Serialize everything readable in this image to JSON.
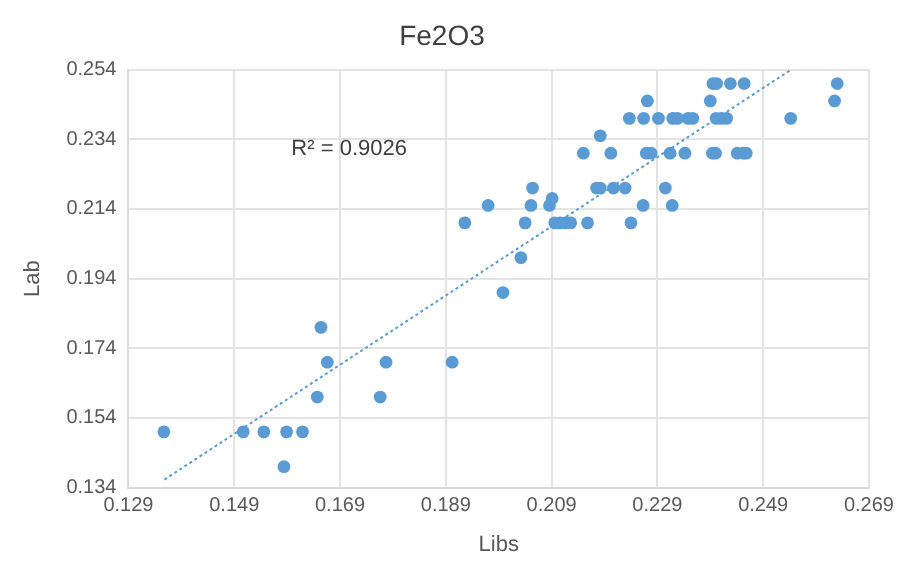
{
  "chart_data": {
    "type": "scatter",
    "title": "Fe2O3",
    "xlabel": "Libs",
    "ylabel": "Lab",
    "annotations": [
      "R² = 0.9026"
    ],
    "series": [
      {
        "type": "scatter",
        "color": "#5b9bd5",
        "marker": "circle",
        "x": [
          0.1357,
          0.1507,
          0.1546,
          0.1589,
          0.1619,
          0.1584,
          0.1647,
          0.1654,
          0.1666,
          0.1766,
          0.1777,
          0.1902,
          0.1926,
          0.197,
          0.1998,
          0.2032,
          0.204,
          0.2051,
          0.2054,
          0.2086,
          0.2091,
          0.2096,
          0.2106,
          0.2116,
          0.2126,
          0.2158,
          0.215,
          0.2175,
          0.2182,
          0.2182,
          0.2202,
          0.2207,
          0.2229,
          0.224,
          0.2237,
          0.2263,
          0.2264,
          0.2271,
          0.2269,
          0.2278,
          0.2292,
          0.2305,
          0.2318,
          0.2314,
          0.2319,
          0.2328,
          0.2342,
          0.2348,
          0.2357,
          0.239,
          0.2394,
          0.24,
          0.2395,
          0.2402,
          0.2401,
          0.2411,
          0.2421,
          0.2428,
          0.2441,
          0.2452,
          0.2458,
          0.2454,
          0.2542,
          0.2625,
          0.263
        ],
        "values": [
          0.15,
          0.15,
          0.15,
          0.15,
          0.15,
          0.14,
          0.16,
          0.18,
          0.17,
          0.16,
          0.17,
          0.17,
          0.21,
          0.215,
          0.19,
          0.2,
          0.21,
          0.215,
          0.22,
          0.215,
          0.217,
          0.21,
          0.21,
          0.21,
          0.21,
          0.21,
          0.23,
          0.22,
          0.22,
          0.235,
          0.23,
          0.22,
          0.22,
          0.21,
          0.24,
          0.215,
          0.24,
          0.245,
          0.23,
          0.23,
          0.24,
          0.22,
          0.215,
          0.23,
          0.24,
          0.24,
          0.23,
          0.24,
          0.24,
          0.245,
          0.23,
          0.23,
          0.25,
          0.25,
          0.24,
          0.24,
          0.24,
          0.25,
          0.23,
          0.23,
          0.23,
          0.25,
          0.24,
          0.245,
          0.25
        ]
      },
      {
        "type": "line",
        "color": "#5b9bd5",
        "line_style": "dotted",
        "marker": "none",
        "x": [
          0.1358,
          0.2543
        ],
        "values": [
          0.1363,
          0.254
        ]
      }
    ],
    "xlim": [
      0.129,
      0.269
    ],
    "xticks": [
      0.129,
      0.149,
      0.169,
      0.189,
      0.209,
      0.229,
      0.249,
      0.269
    ],
    "ylim": [
      0.134,
      0.254
    ],
    "yticks": [
      0.134,
      0.154,
      0.174,
      0.194,
      0.214,
      0.234,
      0.254
    ],
    "grid": true,
    "legend": false
  }
}
